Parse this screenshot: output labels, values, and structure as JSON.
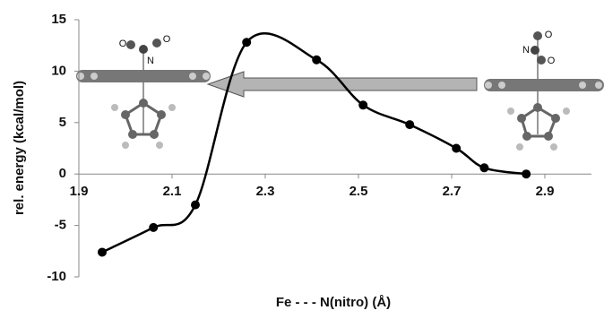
{
  "chart_data": {
    "type": "line",
    "x": [
      1.95,
      2.06,
      2.15,
      2.26,
      2.41,
      2.51,
      2.61,
      2.71,
      2.77,
      2.86
    ],
    "values": [
      -7.6,
      -5.2,
      -3.0,
      12.8,
      11.1,
      6.7,
      4.8,
      2.5,
      0.6,
      0
    ],
    "color": "#000000",
    "xlim": [
      1.9,
      3.0
    ],
    "xticks": [
      1.9,
      2.1,
      2.3,
      2.5,
      2.7,
      2.9
    ],
    "ylim": [
      -10,
      15
    ],
    "yticks": [
      -10,
      -5,
      0,
      5,
      10,
      15
    ],
    "xlabel": "Fe - - - N(nitro) (Å)",
    "ylabel": "rel. energy (kcal/mol)",
    "annotations": [
      "O",
      "O",
      "N",
      "O",
      "N",
      "O"
    ]
  }
}
